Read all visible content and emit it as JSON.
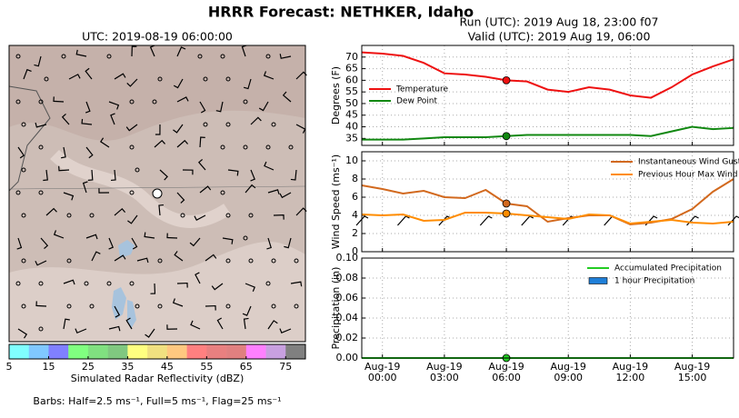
{
  "title": "HRRR Forecast: NETHKER, Idaho",
  "run_label": "Run (UTC): 2019 Aug 18, 23:00 f07",
  "valid_label": "Valid (UTC): 2019 Aug 19, 06:00",
  "chart_data": [
    {
      "type": "map",
      "title": "UTC: 2019-08-19 06:00:00",
      "barbs_label": "Barbs: Half=2.5 ms⁻¹, Full=5 ms⁻¹, Flag=25 ms⁻¹",
      "colorbar": {
        "label": "Simulated Radar Reflectivity (dBZ)",
        "colors": [
          "#80ffff",
          "#80c8ff",
          "#8080ff",
          "#80ff80",
          "#80e080",
          "#80c880",
          "#ffff80",
          "#f0e080",
          "#ffc880",
          "#ff8080",
          "#e88080",
          "#e08080",
          "#ff80ff",
          "#c8a0e0",
          "#808080"
        ],
        "xlim": [
          5,
          80
        ],
        "xticks": [
          5,
          15,
          25,
          35,
          45,
          55,
          65,
          75
        ]
      }
    },
    {
      "type": "line",
      "ylabel": "Degrees (F)",
      "grid": true,
      "legend": "lower left",
      "highlight_x": 6,
      "x": [
        -1,
        0,
        1,
        2,
        3,
        4,
        5,
        6,
        7,
        8,
        9,
        10,
        11,
        12,
        13,
        14,
        15,
        16,
        17
      ],
      "xlim": [
        -1,
        17
      ],
      "xticks": [
        0,
        3,
        6,
        9,
        12,
        15
      ],
      "ylim": [
        32,
        75
      ],
      "yticks": [
        35,
        40,
        45,
        50,
        55,
        60,
        65,
        70
      ],
      "series": [
        {
          "name": "Temperature",
          "color": "#ee1111",
          "values": [
            72,
            71.5,
            70.5,
            67.5,
            63,
            62.5,
            61.5,
            60,
            59.5,
            56,
            55,
            57,
            56,
            53.5,
            52.5,
            57,
            62.5,
            66,
            69
          ]
        },
        {
          "name": "Dew Point",
          "color": "#118811",
          "values": [
            34.5,
            34.5,
            34.5,
            35,
            35.5,
            35.5,
            35.5,
            36,
            36.5,
            36.5,
            36.5,
            36.5,
            36.5,
            36.5,
            36,
            38,
            40,
            39,
            39.5
          ]
        }
      ]
    },
    {
      "type": "line",
      "ylabel": "Wind Speed (ms⁻¹)",
      "grid": true,
      "legend": "upper right",
      "highlight_x": 6,
      "x": [
        -1,
        0,
        1,
        2,
        3,
        4,
        5,
        6,
        7,
        8,
        9,
        10,
        11,
        12,
        13,
        14,
        15,
        16,
        17
      ],
      "xlim": [
        -1,
        17
      ],
      "xticks": [
        0,
        3,
        6,
        9,
        12,
        15
      ],
      "ylim": [
        0,
        11
      ],
      "yticks": [
        0,
        2,
        4,
        6,
        8,
        10
      ],
      "series": [
        {
          "name": "Instantaneous Wind Gust",
          "color": "#d2691e",
          "values": [
            7.3,
            6.9,
            6.4,
            6.7,
            6.0,
            5.9,
            6.8,
            5.3,
            5.0,
            3.3,
            3.7,
            4.0,
            4.0,
            3.0,
            3.2,
            3.6,
            4.7,
            6.6,
            8.0
          ]
        },
        {
          "name": "Previous Hour Max Wind",
          "color": "#ff8c00",
          "values": [
            4.1,
            4.0,
            4.1,
            3.4,
            3.5,
            4.3,
            4.3,
            4.2,
            4.0,
            3.8,
            3.6,
            4.1,
            4.0,
            3.1,
            3.3,
            3.5,
            3.2,
            3.1,
            3.3
          ]
        }
      ]
    },
    {
      "type": "line",
      "ylabel": "Precipitation (in)",
      "grid": true,
      "legend": "upper right",
      "highlight_x": 6,
      "x": [
        -1,
        0,
        1,
        2,
        3,
        4,
        5,
        6,
        7,
        8,
        9,
        10,
        11,
        12,
        13,
        14,
        15,
        16,
        17
      ],
      "xlim": [
        -1,
        17
      ],
      "xticks": [
        {
          "value": 0,
          "label": [
            "Aug-19",
            "00:00"
          ]
        },
        {
          "value": 3,
          "label": [
            "Aug-19",
            "03:00"
          ]
        },
        {
          "value": 6,
          "label": [
            "Aug-19",
            "06:00"
          ]
        },
        {
          "value": 9,
          "label": [
            "Aug-19",
            "09:00"
          ]
        },
        {
          "value": 12,
          "label": [
            "Aug-19",
            "12:00"
          ]
        },
        {
          "value": 15,
          "label": [
            "Aug-19",
            "15:00"
          ]
        }
      ],
      "ylim": [
        0,
        0.1
      ],
      "yticks": [
        {
          "value": 0,
          "label": "0.00"
        },
        0.02,
        0.04,
        0.06,
        0.08,
        {
          "value": 0.1,
          "label": "0.10"
        }
      ],
      "series": [
        {
          "name": "Accumulated Precipitation",
          "color": "#22cc22",
          "values": [
            0,
            0,
            0,
            0,
            0,
            0,
            0,
            0,
            0,
            0,
            0,
            0,
            0,
            0,
            0,
            0,
            0,
            0,
            0
          ]
        },
        {
          "name": "1 hour Precipitation",
          "type": "bar",
          "color": "#1f7fd8",
          "values": [
            0,
            0,
            0,
            0,
            0,
            0,
            0,
            0,
            0,
            0,
            0,
            0,
            0,
            0,
            0,
            0,
            0,
            0,
            0
          ]
        }
      ]
    }
  ]
}
